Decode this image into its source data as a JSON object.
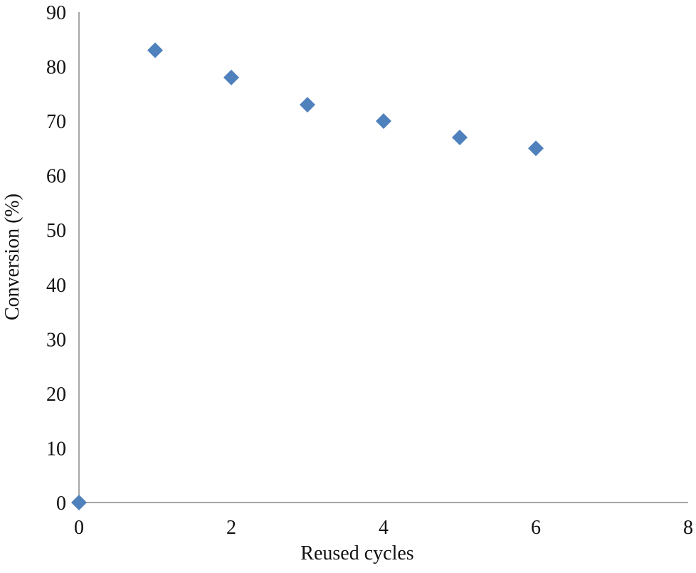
{
  "chart_data": {
    "type": "scatter",
    "x_label": "Reused cycles",
    "y_label": "Conversion (%)",
    "x": [
      0,
      1,
      2,
      3,
      4,
      5,
      6
    ],
    "values": [
      0,
      83,
      78,
      73,
      70,
      67,
      65
    ],
    "color": "#4f81bd",
    "xlim": [
      0,
      8
    ],
    "xticks": [
      0,
      2,
      4,
      6,
      8
    ],
    "ylim": [
      0,
      90
    ],
    "yticks": [
      0,
      10,
      20,
      30,
      40,
      50,
      60,
      70,
      80,
      90
    ],
    "grid": false
  }
}
